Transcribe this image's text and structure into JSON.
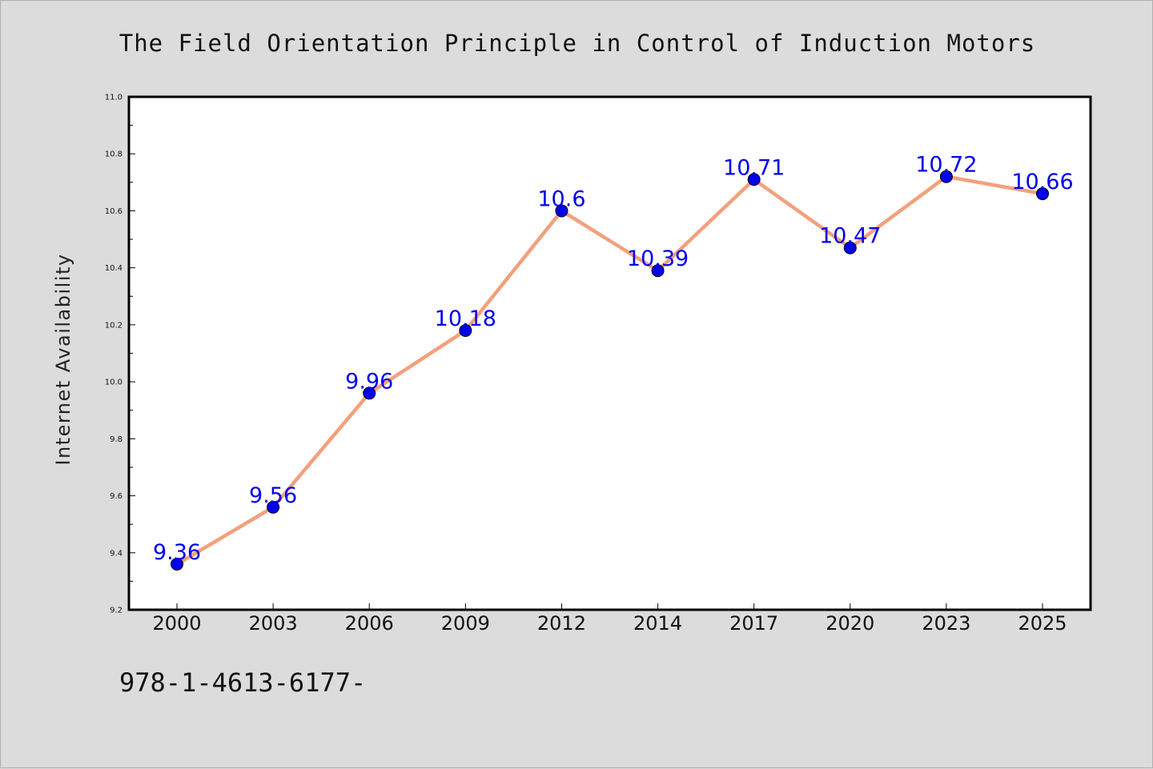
{
  "chart_data": {
    "type": "line",
    "title": "The Field Orientation Principle in Control of Induction Motors",
    "ylabel": "Internet Availability",
    "xlabel": "",
    "categories": [
      "2000",
      "2003",
      "2006",
      "2009",
      "2012",
      "2014",
      "2017",
      "2020",
      "2023",
      "2025"
    ],
    "values": [
      9.36,
      9.56,
      9.96,
      10.18,
      10.6,
      10.39,
      10.71,
      10.47,
      10.72,
      10.66
    ],
    "data_labels": [
      "9.36",
      "9.56",
      "9.96",
      "10.18",
      "10.6",
      "10.39",
      "10.71",
      "10.47",
      "10.72",
      "10.66"
    ],
    "ylim": [
      9.2,
      11.0
    ],
    "yticks": [
      "9.2",
      "9.4",
      "9.6",
      "9.8",
      "10.0",
      "10.2",
      "10.4",
      "10.6",
      "10.8",
      "11.0"
    ],
    "grid": false,
    "legend": "none",
    "colors": {
      "line": "#f4a07c",
      "marker": "#0000ee",
      "data_label": "#0000ee",
      "plot_background": "#ffffff",
      "page_background": "#dcdcdc"
    }
  },
  "footer": {
    "text": "978-1-4613-6177-"
  }
}
